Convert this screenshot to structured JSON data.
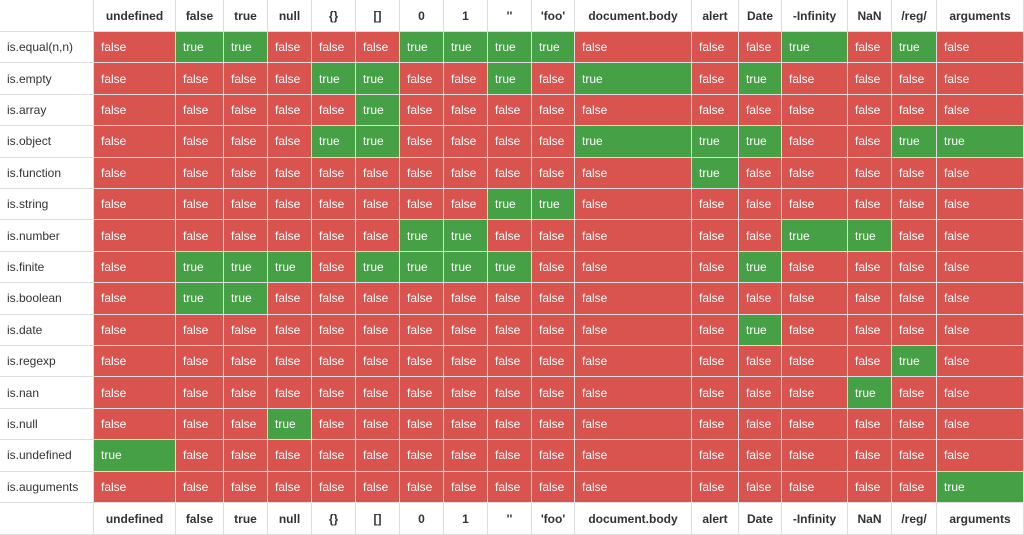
{
  "table": {
    "header": [
      "",
      "undefined",
      "false",
      "true",
      "null",
      "{}",
      "[]",
      "0",
      "1",
      "''",
      "'foo'",
      "document.body",
      "alert",
      "Date",
      "-Infinity",
      "NaN",
      "/reg/",
      "arguments"
    ],
    "rows": [
      [
        "is.equal(n,n)",
        "false",
        "true",
        "true",
        "false",
        "false",
        "false",
        "true",
        "true",
        "true",
        "true",
        "false",
        "false",
        "false",
        "true",
        "false",
        "true",
        "false"
      ],
      [
        "is.empty",
        "false",
        "false",
        "false",
        "false",
        "true",
        "true",
        "false",
        "false",
        "true",
        "false",
        "true",
        "false",
        "true",
        "false",
        "false",
        "false",
        "false"
      ],
      [
        "is.array",
        "false",
        "false",
        "false",
        "false",
        "false",
        "true",
        "false",
        "false",
        "false",
        "false",
        "false",
        "false",
        "false",
        "false",
        "false",
        "false",
        "false"
      ],
      [
        "is.object",
        "false",
        "false",
        "false",
        "false",
        "true",
        "true",
        "false",
        "false",
        "false",
        "false",
        "true",
        "true",
        "true",
        "false",
        "false",
        "true",
        "true"
      ],
      [
        "is.function",
        "false",
        "false",
        "false",
        "false",
        "false",
        "false",
        "false",
        "false",
        "false",
        "false",
        "false",
        "true",
        "false",
        "false",
        "false",
        "false",
        "false"
      ],
      [
        "is.string",
        "false",
        "false",
        "false",
        "false",
        "false",
        "false",
        "false",
        "false",
        "true",
        "true",
        "false",
        "false",
        "false",
        "false",
        "false",
        "false",
        "false"
      ],
      [
        "is.number",
        "false",
        "false",
        "false",
        "false",
        "false",
        "false",
        "true",
        "true",
        "false",
        "false",
        "false",
        "false",
        "false",
        "true",
        "true",
        "false",
        "false"
      ],
      [
        "is.finite",
        "false",
        "true",
        "true",
        "true",
        "false",
        "true",
        "true",
        "true",
        "true",
        "false",
        "false",
        "false",
        "true",
        "false",
        "false",
        "false",
        "false"
      ],
      [
        "is.boolean",
        "false",
        "true",
        "true",
        "false",
        "false",
        "false",
        "false",
        "false",
        "false",
        "false",
        "false",
        "false",
        "false",
        "false",
        "false",
        "false",
        "false"
      ],
      [
        "is.date",
        "false",
        "false",
        "false",
        "false",
        "false",
        "false",
        "false",
        "false",
        "false",
        "false",
        "false",
        "false",
        "true",
        "false",
        "false",
        "false",
        "false"
      ],
      [
        "is.regexp",
        "false",
        "false",
        "false",
        "false",
        "false",
        "false",
        "false",
        "false",
        "false",
        "false",
        "false",
        "false",
        "false",
        "false",
        "false",
        "true",
        "false"
      ],
      [
        "is.nan",
        "false",
        "false",
        "false",
        "false",
        "false",
        "false",
        "false",
        "false",
        "false",
        "false",
        "false",
        "false",
        "false",
        "false",
        "true",
        "false",
        "false"
      ],
      [
        "is.null",
        "false",
        "false",
        "false",
        "true",
        "false",
        "false",
        "false",
        "false",
        "false",
        "false",
        "false",
        "false",
        "false",
        "false",
        "false",
        "false",
        "false"
      ],
      [
        "is.undefined",
        "true",
        "false",
        "false",
        "false",
        "false",
        "false",
        "false",
        "false",
        "false",
        "false",
        "false",
        "false",
        "false",
        "false",
        "false",
        "false",
        "false"
      ],
      [
        "is.auguments",
        "false",
        "false",
        "false",
        "false",
        "false",
        "false",
        "false",
        "false",
        "false",
        "false",
        "false",
        "false",
        "false",
        "false",
        "false",
        "false",
        "true"
      ]
    ],
    "footer": [
      "",
      "undefined",
      "false",
      "true",
      "null",
      "{}",
      "[]",
      "0",
      "1",
      "''",
      "'foo'",
      "document.body",
      "alert",
      "Date",
      "-Infinity",
      "NaN",
      "/reg/",
      "arguments"
    ]
  }
}
